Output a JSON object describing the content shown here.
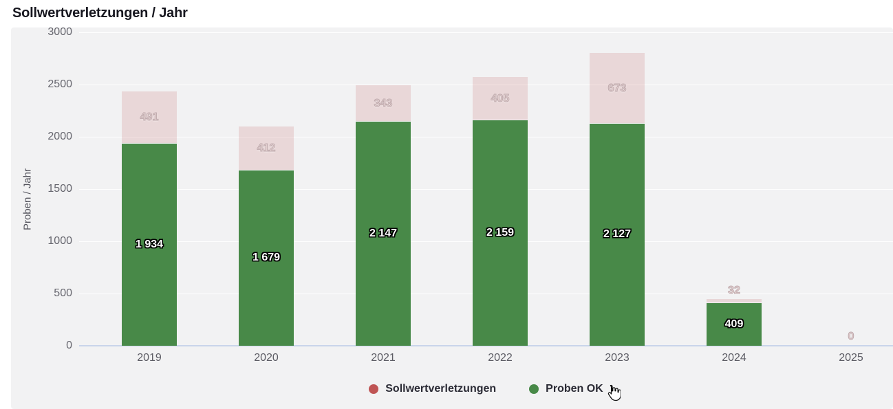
{
  "page": {
    "title": "Sollwertverletzungen / Jahr"
  },
  "chart_data": {
    "type": "bar",
    "stacked": true,
    "title": "Sollwertverletzungen / Jahr",
    "ylabel": "Proben / Jahr",
    "xlabel": "",
    "ylim": [
      0,
      3000
    ],
    "yticks": [
      0,
      500,
      1000,
      1500,
      2000,
      2500,
      3000
    ],
    "grid": true,
    "categories": [
      "2019",
      "2020",
      "2021",
      "2022",
      "2023",
      "2024",
      "2025"
    ],
    "series": [
      {
        "name": "Proben OK",
        "role": "bottom",
        "color": "#488948",
        "fill": "#488948",
        "values": [
          1934,
          1679,
          2147,
          2159,
          2127,
          409,
          0
        ],
        "labels": [
          "1 934",
          "1 679",
          "2 147",
          "2 159",
          "2 127",
          "409",
          ""
        ]
      },
      {
        "name": "Sollwertverletzungen",
        "role": "top",
        "color": "#bf5454",
        "fill": "rgba(191,84,84,0.17)",
        "values": [
          491,
          412,
          343,
          405,
          673,
          32,
          0
        ],
        "labels": [
          "491",
          "412",
          "343",
          "405",
          "673",
          "32",
          "0"
        ]
      }
    ],
    "legend": {
      "position": "bottom",
      "items": [
        {
          "label": "Sollwertverletzungen",
          "color": "#bf5454"
        },
        {
          "label": "Proben OK",
          "color": "#488948"
        }
      ]
    }
  },
  "icons": {
    "cursor": "hand-pointer-icon"
  },
  "colors": {
    "page_bg": "#ffffff",
    "panel_bg": "#f2f2f3",
    "grid_line": "#fdfdfe",
    "zero_line": "#c9d5ea",
    "axis_text": "#66666e",
    "title_text": "#17171f",
    "legend_text": "#2b2b35",
    "pink_label": "#bfaaad"
  }
}
